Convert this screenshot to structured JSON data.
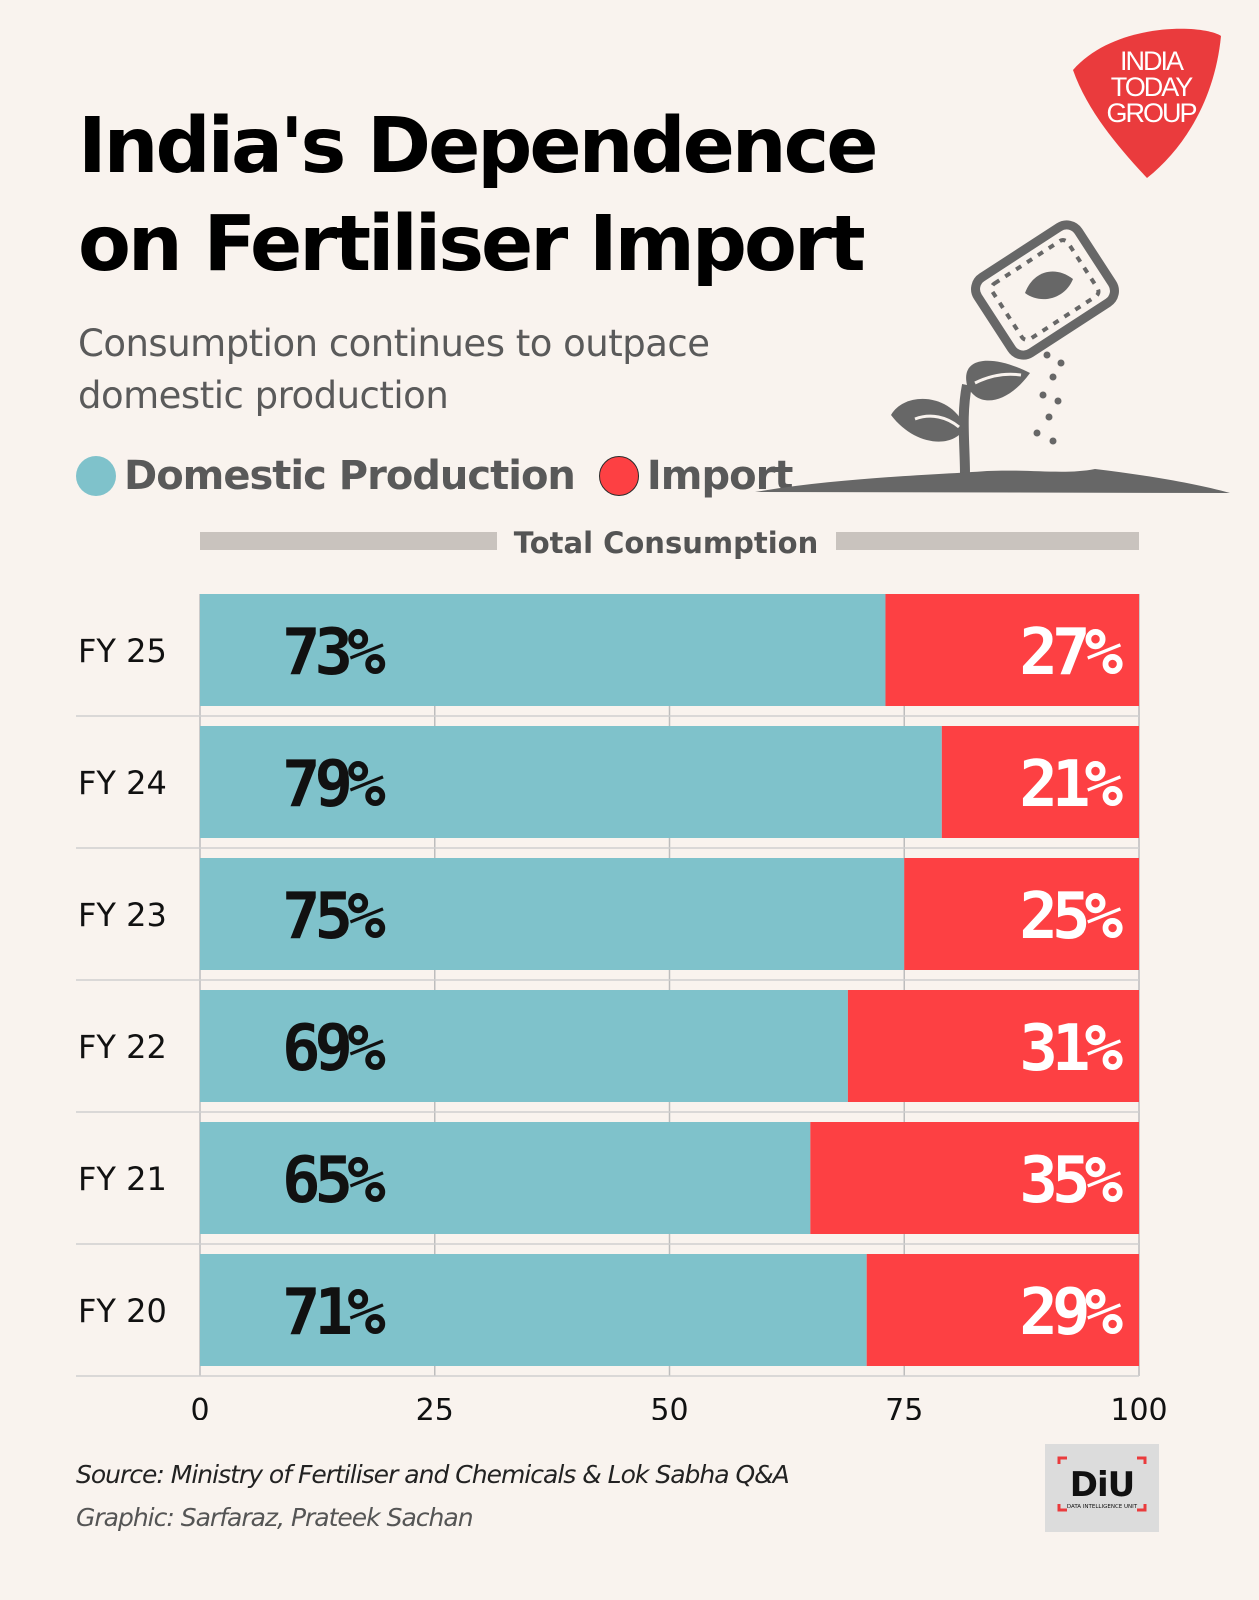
{
  "header": {
    "title_line1": "India's Dependence",
    "title_line2": "on Fertiliser Import",
    "subtitle": "Consumption continues to outpace domestic production",
    "logo_text": [
      "INDIA",
      "TODAY",
      "GROUP"
    ]
  },
  "legend": {
    "domestic_label": "Domestic Production",
    "import_label": "Import"
  },
  "colors": {
    "domestic": "#7fc2cb",
    "import": "#fd4043",
    "background": "#f9f3ee",
    "brand_red": "#ea3b3d"
  },
  "icons": [
    "fertiliser-bag-icon",
    "plant-sprout-icon"
  ],
  "chart_data": {
    "type": "bar",
    "orientation": "horizontal",
    "stacked": true,
    "header_label": "Total Consumption",
    "categories": [
      "FY 25",
      "FY 24",
      "FY 23",
      "FY 22",
      "FY 21",
      "FY 20"
    ],
    "series": [
      {
        "name": "Domestic Production",
        "values": [
          73,
          79,
          75,
          69,
          65,
          71
        ]
      },
      {
        "name": "Import",
        "values": [
          27,
          21,
          25,
          31,
          35,
          29
        ]
      }
    ],
    "value_labels": {
      "Domestic Production": [
        "73%",
        "79%",
        "75%",
        "69%",
        "65%",
        "71%"
      ],
      "Import": [
        "27%",
        "21%",
        "25%",
        "31%",
        "35%",
        "29%"
      ]
    },
    "xlim": [
      0,
      100
    ],
    "xticks": [
      0,
      25,
      50,
      75,
      100
    ],
    "xlabel": "",
    "ylabel": "",
    "grid": true
  },
  "footer": {
    "source": "Source: Ministry of Fertiliser and Chemicals & Lok Sabha Q&A",
    "credit": "Graphic: Sarfaraz, Prateek Sachan",
    "diu_logo_text": "DiU",
    "diu_logo_subtext": "DATA INTELLIGENCE UNIT"
  }
}
